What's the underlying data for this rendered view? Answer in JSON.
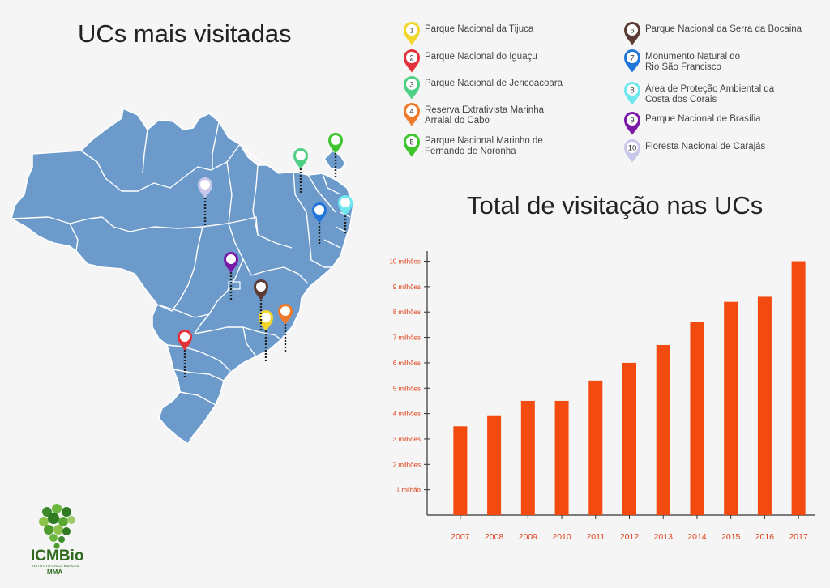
{
  "map_title": "UCs mais visitadas",
  "chart_title": "Total de visitação nas UCs",
  "legend": [
    {
      "num": "1",
      "lines": [
        "Parque Nacional da Tijuca"
      ],
      "color": "#f2d52a"
    },
    {
      "num": "2",
      "lines": [
        "Parque Nacional do Iguaçu"
      ],
      "color": "#e2323a"
    },
    {
      "num": "3",
      "lines": [
        "Parque Nacional de Jericoacoara"
      ],
      "color": "#4fcf86"
    },
    {
      "num": "4",
      "lines": [
        "Reserva Extrativista Marinha",
        "Arraial do Cabo"
      ],
      "color": "#ef7a2c"
    },
    {
      "num": "5",
      "lines": [
        "Parque Nacional Marinho de",
        "Fernando de Noronha"
      ],
      "color": "#3fc62e"
    },
    {
      "num": "6",
      "lines": [
        "Parque Nacional da Serra da Bocaina"
      ],
      "color": "#5a3a33"
    },
    {
      "num": "7",
      "lines": [
        "Monumento Natural do",
        "Rio São Francisco"
      ],
      "color": "#2374d9"
    },
    {
      "num": "8",
      "lines": [
        "Área de Proteção Ambiental  da",
        "Costa dos Corais"
      ],
      "color": "#6ee8ee"
    },
    {
      "num": "9",
      "lines": [
        "Parque Nacional de Brasília"
      ],
      "color": "#7a18a8"
    },
    {
      "num": "10",
      "lines": [
        "Floresta Nacional de Carajás"
      ],
      "color": "#c9c6ec"
    }
  ],
  "logo": {
    "name": "ICMBio",
    "subtitle": "INSTITUTO CHICO MENDES",
    "tag": "MMA"
  },
  "chart_data": {
    "type": "bar",
    "title": "Total de visitação nas UCs",
    "xlabel": "",
    "ylabel": "",
    "categories": [
      "2007",
      "2008",
      "2009",
      "2010",
      "2011",
      "2012",
      "2013",
      "2014",
      "2015",
      "2016",
      "2017"
    ],
    "values": [
      3.5,
      3.9,
      4.5,
      4.5,
      5.3,
      6.0,
      6.7,
      7.6,
      8.4,
      8.6,
      10.0
    ],
    "value_unit": "milhões",
    "ylim": [
      0,
      10.4
    ],
    "yticks": [
      1,
      2,
      3,
      4,
      5,
      6,
      7,
      8,
      9,
      10
    ],
    "ytick_labels": [
      "1 milhão",
      "2 milhões",
      "3 milhões",
      "4 milhões",
      "5 milhões",
      "6 milhões",
      "7 milhões",
      "8 milhões",
      "9 milhões",
      "10 milhões"
    ],
    "grid": false,
    "bar_color": "#f24a0f"
  }
}
